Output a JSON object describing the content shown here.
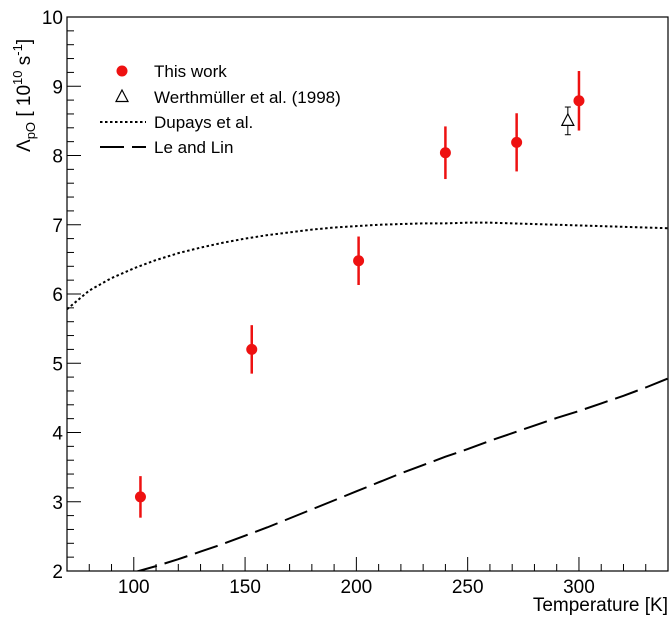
{
  "chart_data": {
    "type": "scatter",
    "xlabel": "Temperature [K]",
    "ylabel": {
      "symbol": "Λ",
      "subscript": "pO",
      "open": " [ 10",
      "exp1": "10",
      "mid": " s",
      "exp2": "-1",
      "close": "]"
    },
    "xlim": [
      70,
      340
    ],
    "ylim": [
      2,
      10
    ],
    "x_ticks": [
      100,
      150,
      200,
      250,
      300
    ],
    "y_ticks": [
      2,
      3,
      4,
      5,
      6,
      7,
      8,
      9,
      10
    ],
    "grid": false,
    "legend_position": "top-left",
    "series": [
      {
        "name": "This work",
        "kind": "points",
        "marker": "filled-circle",
        "color": "#ee1111",
        "points": [
          {
            "x": 103,
            "y": 3.07,
            "err": 0.3
          },
          {
            "x": 153,
            "y": 5.2,
            "err": 0.35
          },
          {
            "x": 201,
            "y": 6.48,
            "err": 0.35
          },
          {
            "x": 240,
            "y": 8.04,
            "err": 0.38
          },
          {
            "x": 272,
            "y": 8.19,
            "err": 0.42
          },
          {
            "x": 300,
            "y": 8.79,
            "err": 0.43
          }
        ]
      },
      {
        "name": "Werthmüller et al. (1998)",
        "kind": "points",
        "marker": "open-triangle",
        "color": "#000000",
        "points": [
          {
            "x": 295,
            "y": 8.5,
            "err": 0.2
          }
        ]
      },
      {
        "name": "Dupays et al.",
        "kind": "line",
        "style": "dotted",
        "color": "#000000",
        "x": [
          70,
          80,
          90,
          100,
          110,
          120,
          130,
          140,
          150,
          160,
          170,
          180,
          190,
          200,
          210,
          220,
          230,
          240,
          250,
          260,
          270,
          280,
          290,
          300,
          310,
          320,
          330,
          340
        ],
        "y": [
          5.78,
          6.05,
          6.23,
          6.37,
          6.49,
          6.59,
          6.67,
          6.74,
          6.8,
          6.85,
          6.89,
          6.93,
          6.96,
          6.98,
          7.0,
          7.01,
          7.02,
          7.02,
          7.03,
          7.03,
          7.02,
          7.01,
          7.0,
          6.99,
          6.98,
          6.97,
          6.96,
          6.95
        ]
      },
      {
        "name": "Le and Lin",
        "kind": "line",
        "style": "long-dash",
        "color": "#000000",
        "x": [
          100,
          110,
          120,
          130,
          140,
          150,
          160,
          170,
          180,
          190,
          200,
          210,
          220,
          230,
          240,
          250,
          260,
          270,
          280,
          290,
          300,
          310,
          320,
          330,
          340
        ],
        "y": [
          1.98,
          2.07,
          2.17,
          2.28,
          2.39,
          2.51,
          2.63,
          2.76,
          2.89,
          3.02,
          3.15,
          3.28,
          3.41,
          3.53,
          3.65,
          3.76,
          3.88,
          3.99,
          4.1,
          4.21,
          4.31,
          4.42,
          4.53,
          4.65,
          4.78
        ]
      }
    ]
  }
}
